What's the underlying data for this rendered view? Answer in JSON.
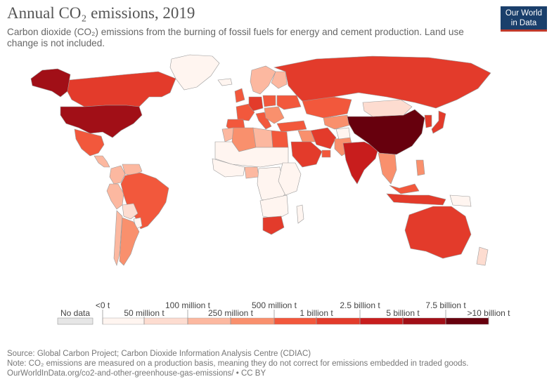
{
  "header": {
    "title": "Annual CO₂ emissions, 2019",
    "subtitle": "Carbon dioxide (CO₂) emissions from the burning of fossil fuels for energy and cement production. Land use change is not included."
  },
  "logo": {
    "line1": "Our World",
    "line2": "in Data",
    "bg_color": "#1a3f6b",
    "stripe_color": "#c0392b"
  },
  "legend": {
    "no_data_label": "No data",
    "no_data_color": "#e6e6e6",
    "bins": [
      {
        "color": "#fff5f0"
      },
      {
        "color": "#fddcd0"
      },
      {
        "color": "#fcb8a0"
      },
      {
        "color": "#f9906d"
      },
      {
        "color": "#f2583c"
      },
      {
        "color": "#e33b2b"
      },
      {
        "color": "#c81d1d"
      },
      {
        "color": "#a10f17"
      },
      {
        "color": "#67000d"
      }
    ],
    "tick_labels_top": [
      "<0 t",
      "100 million t",
      "500 million t",
      "2.5 billion t",
      "7.5 billion t"
    ],
    "tick_labels_bottom": [
      "50 million t",
      "250 million t",
      "1 billion t",
      "5 billion t",
      ">10 billion t"
    ]
  },
  "map": {
    "regions": [
      {
        "name": "Canada",
        "bin": 5
      },
      {
        "name": "United States",
        "bin": 7
      },
      {
        "name": "Alaska",
        "bin": 7
      },
      {
        "name": "Greenland",
        "bin": 0
      },
      {
        "name": "Mexico",
        "bin": 4
      },
      {
        "name": "Central America",
        "bin": 2
      },
      {
        "name": "Colombia",
        "bin": 2
      },
      {
        "name": "Venezuela",
        "bin": 2
      },
      {
        "name": "Peru",
        "bin": 2
      },
      {
        "name": "Brazil",
        "bin": 4
      },
      {
        "name": "Bolivia",
        "bin": 1
      },
      {
        "name": "Paraguay",
        "bin": 0
      },
      {
        "name": "Chile",
        "bin": 2
      },
      {
        "name": "Argentina",
        "bin": 3
      },
      {
        "name": "Iceland",
        "bin": 0
      },
      {
        "name": "United Kingdom",
        "bin": 4
      },
      {
        "name": "France",
        "bin": 4
      },
      {
        "name": "Spain",
        "bin": 4
      },
      {
        "name": "Germany",
        "bin": 5
      },
      {
        "name": "Italy",
        "bin": 4
      },
      {
        "name": "Poland",
        "bin": 4
      },
      {
        "name": "Scandinavia",
        "bin": 2
      },
      {
        "name": "Finland",
        "bin": 2
      },
      {
        "name": "Eastern Europe",
        "bin": 3
      },
      {
        "name": "Ukraine",
        "bin": 4
      },
      {
        "name": "Turkey",
        "bin": 4
      },
      {
        "name": "Russia",
        "bin": 5
      },
      {
        "name": "Kazakhstan",
        "bin": 4
      },
      {
        "name": "Central Asia",
        "bin": 3
      },
      {
        "name": "Iran",
        "bin": 5
      },
      {
        "name": "Iraq",
        "bin": 3
      },
      {
        "name": "Saudi Arabia",
        "bin": 5
      },
      {
        "name": "Gulf States",
        "bin": 4
      },
      {
        "name": "Pakistan",
        "bin": 3
      },
      {
        "name": "Afghanistan",
        "bin": 0
      },
      {
        "name": "India",
        "bin": 6
      },
      {
        "name": "China",
        "bin": 8
      },
      {
        "name": "Mongolia",
        "bin": 1
      },
      {
        "name": "Korea",
        "bin": 5
      },
      {
        "name": "Japan",
        "bin": 5
      },
      {
        "name": "Southeast Asia mainland",
        "bin": 3
      },
      {
        "name": "Malaysia",
        "bin": 4
      },
      {
        "name": "Indonesia",
        "bin": 5
      },
      {
        "name": "Philippines",
        "bin": 3
      },
      {
        "name": "Papua New Guinea",
        "bin": 0
      },
      {
        "name": "Australia",
        "bin": 5
      },
      {
        "name": "New Zealand",
        "bin": 1
      },
      {
        "name": "Morocco",
        "bin": 2
      },
      {
        "name": "Algeria",
        "bin": 3
      },
      {
        "name": "Libya",
        "bin": 2
      },
      {
        "name": "Egypt",
        "bin": 4
      },
      {
        "name": "Sahel",
        "bin": 0
      },
      {
        "name": "West Africa",
        "bin": 0
      },
      {
        "name": "Nigeria",
        "bin": 2
      },
      {
        "name": "Central Africa",
        "bin": 0
      },
      {
        "name": "East Africa",
        "bin": 0
      },
      {
        "name": "Southern Africa",
        "bin": 0
      },
      {
        "name": "South Africa",
        "bin": 5
      },
      {
        "name": "Madagascar",
        "bin": 0
      }
    ]
  },
  "footer": {
    "source": "Source: Global Carbon Project; Carbon Dioxide Information Analysis Centre (CDIAC)",
    "note": "Note: CO₂ emissions are measured on a production basis, meaning they do not correct for emissions embedded in traded goods.",
    "url": "OurWorldInData.org/co2-and-other-greenhouse-gas-emissions/ • CC BY"
  }
}
